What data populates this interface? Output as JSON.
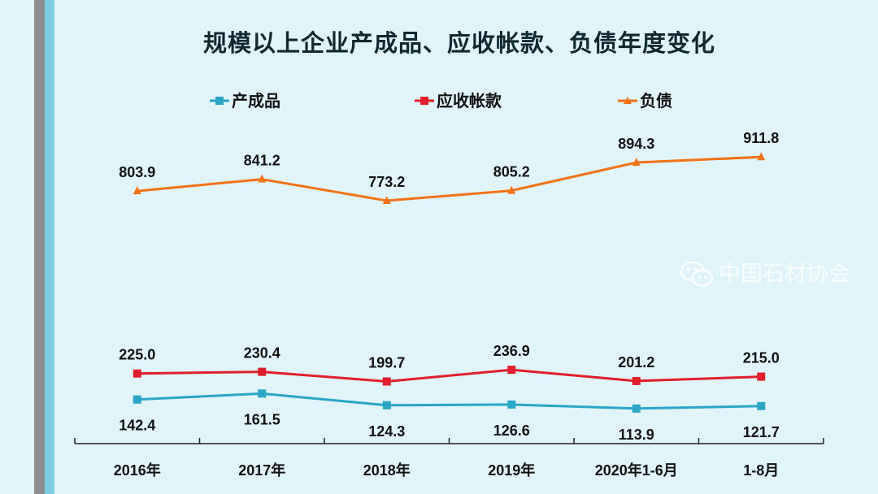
{
  "chart_data": {
    "type": "line",
    "title": "规模以上企业产成品、应收帐款、负债年度变化",
    "categories": [
      "2016年",
      "2017年",
      "2018年",
      "2019年",
      "2020年1-6月",
      "1-8月"
    ],
    "series": [
      {
        "name": "产成品",
        "color": "#2ba6c6",
        "marker": "square",
        "values": [
          142.4,
          161.5,
          124.3,
          126.6,
          113.9,
          121.7
        ]
      },
      {
        "name": "应收帐款",
        "color": "#e11e2b",
        "marker": "square",
        "values": [
          225.0,
          230.4,
          199.7,
          236.9,
          201.2,
          215.0
        ]
      },
      {
        "name": "负债",
        "color": "#f07318",
        "marker": "triangle",
        "values": [
          803.9,
          841.2,
          773.2,
          805.2,
          894.3,
          911.8
        ]
      }
    ],
    "ylim": [
      0,
      1000
    ],
    "grid": false,
    "legend": "top",
    "xlabel": "",
    "ylabel": ""
  },
  "watermark": "中国石材协会"
}
